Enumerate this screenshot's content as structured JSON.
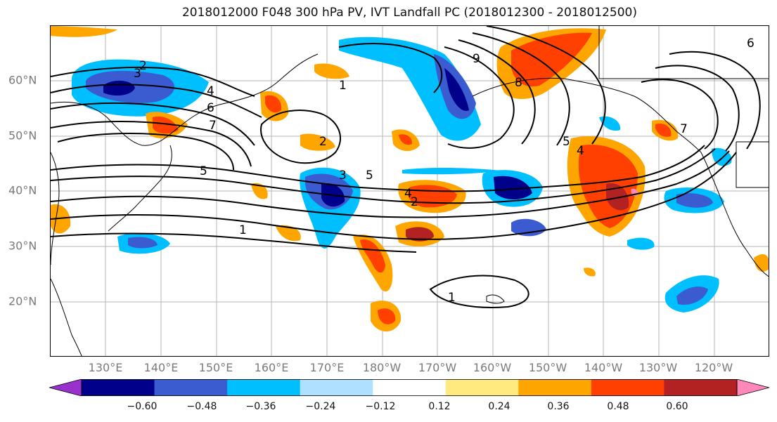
{
  "title": "2018012000 F048 300 hPa PV, IVT Landfall PC (2018012300 - 2018012500)",
  "lat_labels": [
    "60°N",
    "50°N",
    "40°N",
    "30°N",
    "20°N"
  ],
  "lon_labels": [
    "130°E",
    "140°E",
    "150°E",
    "160°E",
    "170°E",
    "180°W",
    "170°W",
    "160°W",
    "150°W",
    "140°W",
    "130°W",
    "120°W"
  ],
  "contour_labels": [
    "2",
    "3",
    "4",
    "6",
    "7",
    "5",
    "2",
    "1",
    "3",
    "5",
    "4",
    "2",
    "5",
    "4",
    "1",
    "9",
    "8",
    "7",
    "6",
    "1"
  ],
  "colorbar": {
    "colors": [
      "#9932cc",
      "#00008b",
      "#3b5bd1",
      "#00bfff",
      "#b0e0ff",
      "#ffffff",
      "#ffea80",
      "#ffa500",
      "#ff4000",
      "#b22222",
      "#ff88bb"
    ],
    "tick_labels": [
      "−0.60",
      "−0.48",
      "−0.36",
      "−0.24",
      "−0.12",
      "0.12",
      "0.24",
      "0.36",
      "0.48",
      "0.60"
    ]
  },
  "palette": {
    "neg_dark": "#00008b",
    "neg_mid": "#3b5bd1",
    "neg_light": "#00bfff",
    "neg_pale": "#b0e0ff",
    "pos_pale": "#ffea80",
    "pos_light": "#ffa500",
    "pos_mid": "#ff4000",
    "pos_dark": "#b22222",
    "pos_max": "#ff88bb"
  }
}
